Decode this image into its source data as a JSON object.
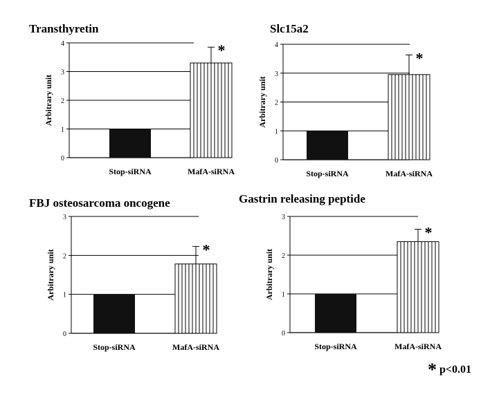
{
  "hatch_color": "#000000",
  "bar_dark_color": "#111111",
  "chart_data": [
    {
      "type": "bar",
      "title": "Transthyretin",
      "ylabel": "Arbitrary unit",
      "xlabel": "",
      "categories": [
        "Stop-siRNA",
        "MafA-siRNA"
      ],
      "values": [
        1.0,
        3.3
      ],
      "errors": [
        0,
        0.55
      ],
      "significance": [
        "",
        "*"
      ],
      "ylim": [
        0,
        4
      ],
      "yticks": [
        "0",
        "1",
        "2",
        "3",
        "4"
      ],
      "grid": true
    },
    {
      "type": "bar",
      "title": "Slc15a2",
      "ylabel": "Arbitrary unit",
      "xlabel": "",
      "categories": [
        "Stop-siRNA",
        "MafA-siRNA"
      ],
      "values": [
        1.0,
        2.95
      ],
      "errors": [
        0,
        0.68
      ],
      "significance": [
        "",
        "*"
      ],
      "ylim": [
        0,
        4
      ],
      "yticks": [
        "0",
        "1",
        "2",
        "3",
        "4"
      ],
      "grid": true
    },
    {
      "type": "bar",
      "title": "FBJ osteosarcoma oncogene",
      "ylabel": "Arbitrary unit",
      "xlabel": "",
      "categories": [
        "Stop-siRNA",
        "MafA-siRNA"
      ],
      "values": [
        1.0,
        1.78
      ],
      "errors": [
        0,
        0.45
      ],
      "significance": [
        "",
        "*"
      ],
      "ylim": [
        0,
        3
      ],
      "yticks": [
        "0",
        "1",
        "2",
        "3"
      ],
      "grid": true
    },
    {
      "type": "bar",
      "title": "Gastrin releasing peptide",
      "ylabel": "Arbitrary unit",
      "xlabel": "",
      "categories": [
        "Stop-siRNA",
        "MafA-siRNA"
      ],
      "values": [
        1.0,
        2.35
      ],
      "errors": [
        0,
        0.32
      ],
      "significance": [
        "",
        "*"
      ],
      "ylim": [
        0,
        3
      ],
      "yticks": [
        "0",
        "1",
        "2",
        "3"
      ],
      "grid": true
    }
  ],
  "footnote": {
    "symbol": "*",
    "text": "p<0.01"
  }
}
